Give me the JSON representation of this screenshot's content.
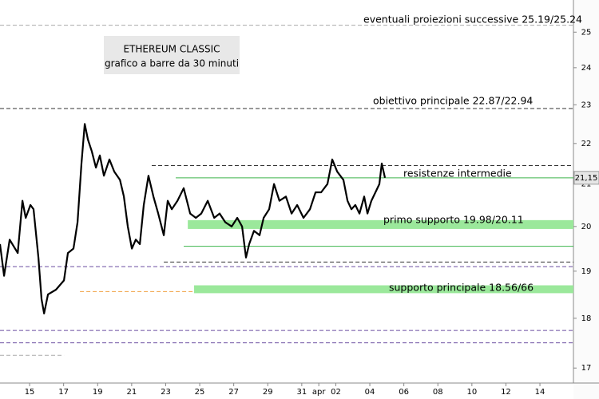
{
  "chart_data": {
    "type": "line",
    "title": "ETHEREUM CLASSIC",
    "subtitle": "grafico a barre da 30 minuti",
    "color": "#000000",
    "log_scale": true,
    "xlim": [
      -1.74,
      31.97
    ],
    "ylim": [
      16.71,
      25.94
    ],
    "xticks": [
      {
        "value": 0,
        "label": "15"
      },
      {
        "value": 2,
        "label": "17"
      },
      {
        "value": 4,
        "label": "19"
      },
      {
        "value": 6,
        "label": "21"
      },
      {
        "value": 8,
        "label": "23"
      },
      {
        "value": 10,
        "label": "25"
      },
      {
        "value": 12,
        "label": "27"
      },
      {
        "value": 14,
        "label": "29"
      },
      {
        "value": 16,
        "label": "31"
      },
      {
        "value": 17,
        "label": "apr"
      },
      {
        "value": 18,
        "label": "02"
      },
      {
        "value": 20,
        "label": "04"
      },
      {
        "value": 22,
        "label": "06"
      },
      {
        "value": 24,
        "label": "08"
      },
      {
        "value": 26,
        "label": "10"
      },
      {
        "value": 28,
        "label": "12"
      },
      {
        "value": 30,
        "label": "14"
      }
    ],
    "yticks": [
      17,
      18,
      19,
      20,
      21,
      22,
      23,
      24,
      25
    ],
    "x": [
      -1.74,
      -1.5,
      -1.17,
      -0.7,
      -0.42,
      -0.23,
      0.05,
      0.23,
      0.52,
      0.7,
      0.85,
      1.08,
      1.55,
      2.02,
      2.25,
      2.58,
      2.82,
      3.05,
      3.24,
      3.43,
      3.66,
      3.9,
      4.13,
      4.37,
      4.69,
      4.98,
      5.31,
      5.54,
      5.77,
      6.01,
      6.24,
      6.48,
      6.71,
      6.99,
      7.28,
      7.56,
      7.89,
      8.12,
      8.36,
      8.69,
      9.06,
      9.44,
      9.77,
      10.09,
      10.47,
      10.85,
      11.17,
      11.5,
      11.88,
      12.21,
      12.49,
      12.72,
      12.91,
      13.19,
      13.52,
      13.76,
      14.08,
      14.37,
      14.69,
      15.07,
      15.4,
      15.73,
      16.1,
      16.48,
      16.81,
      17.14,
      17.51,
      17.79,
      18.08,
      18.45,
      18.69,
      18.92,
      19.15,
      19.39,
      19.67,
      19.86,
      20.09,
      20.33,
      20.56,
      20.7,
      20.89
    ],
    "values": [
      19.6,
      18.9,
      19.7,
      19.4,
      20.6,
      20.2,
      20.5,
      20.4,
      19.3,
      18.4,
      18.1,
      18.5,
      18.6,
      18.8,
      19.4,
      19.5,
      20.1,
      21.5,
      22.5,
      22.1,
      21.8,
      21.4,
      21.7,
      21.2,
      21.6,
      21.3,
      21.1,
      20.7,
      20.0,
      19.5,
      19.7,
      19.6,
      20.5,
      21.2,
      20.7,
      20.3,
      19.8,
      20.6,
      20.4,
      20.6,
      20.9,
      20.3,
      20.2,
      20.3,
      20.6,
      20.2,
      20.3,
      20.1,
      20.0,
      20.2,
      20.0,
      19.3,
      19.6,
      19.9,
      19.8,
      20.2,
      20.4,
      21.0,
      20.6,
      20.7,
      20.3,
      20.5,
      20.2,
      20.4,
      20.8,
      20.8,
      21.0,
      21.6,
      21.3,
      21.1,
      20.6,
      20.4,
      20.5,
      20.3,
      20.7,
      20.3,
      20.6,
      20.8,
      21.0,
      21.5,
      21.15
    ],
    "last_price": {
      "value": 21.15,
      "label": "21,15"
    },
    "levels": [
      {
        "value": 25.2,
        "color": "#aaaaaa",
        "style": "dashed",
        "x_start": -1.74
      },
      {
        "value": 22.9,
        "color": "#333333",
        "style": "dashed",
        "x_start": -1.74
      },
      {
        "value": 21.45,
        "color": "#333333",
        "style": "dashed",
        "x_start": 7.18
      },
      {
        "value": 21.15,
        "color": "#3cb44b",
        "style": "solid",
        "x_start": 8.59
      },
      {
        "low": 19.98,
        "high": 20.11,
        "color": "#9be89b",
        "x_start": 9.3
      },
      {
        "value": 19.55,
        "color": "#3cb44b",
        "style": "solid",
        "x_start": 9.06
      },
      {
        "value": 19.2,
        "color": "#333333",
        "style": "dashed",
        "x_start": 7.89
      },
      {
        "value": 19.1,
        "color": "#6a4ca0",
        "style": "dashed",
        "x_start": -1.74
      },
      {
        "low": 18.56,
        "high": 18.66,
        "color": "#9be89b",
        "x_start": 9.67
      },
      {
        "value": 18.56,
        "color": "#f0a040",
        "style": "dashed",
        "x_start": 2.96,
        "x_end": 9.67
      },
      {
        "value": 17.75,
        "color": "#6a4ca0",
        "style": "dashed",
        "x_start": -1.74
      },
      {
        "value": 17.5,
        "color": "#6a4ca0",
        "style": "dashed",
        "x_start": -1.74
      },
      {
        "value": 17.25,
        "color": "#aaaaaa",
        "style": "dashed",
        "x_start": -1.74,
        "x_end": 2.02
      }
    ],
    "annotations": [
      "eventuali proiezioni successive 25.19/25.24",
      "obiettivo principale 22.87/22.94",
      "resistenze intermedie",
      "primo supporto 19.98/20.11",
      "supporto principale 18.56/66"
    ]
  }
}
